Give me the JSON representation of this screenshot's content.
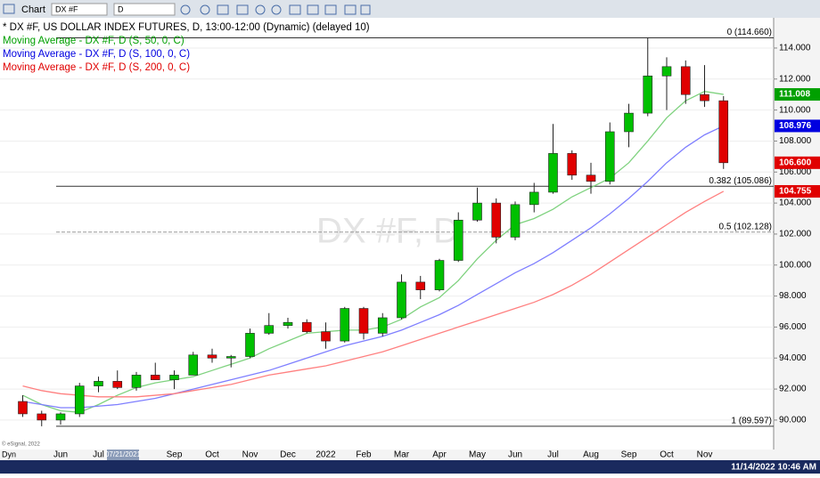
{
  "toolbar": {
    "title": "Chart",
    "symbol": "DX #F",
    "interval": "D"
  },
  "chart_data": {
    "type": "candlestick",
    "title": "* DX #F, US DOLLAR INDEX FUTURES, D, 13:00-12:00 (Dynamic) (delayed 10)",
    "watermark": "DX #F, D",
    "crosshair_date": "07/21/2021",
    "footer_time": "11/14/2022 10:46 AM",
    "mode": "Dyn",
    "copyright": "© eSignal, 2022",
    "categories": [
      null,
      null,
      "Jun",
      null,
      "Jul",
      null,
      null,
      null,
      "Sep",
      null,
      "Oct",
      null,
      "Nov",
      null,
      "Dec",
      null,
      "2022",
      null,
      "Feb",
      null,
      "Mar",
      null,
      "Apr",
      null,
      "May",
      null,
      "Jun",
      null,
      "Jul",
      null,
      "Aug",
      null,
      "Sep",
      null,
      "Oct",
      null,
      "Nov",
      null
    ],
    "open": [
      91.2,
      90.4,
      90.0,
      90.4,
      92.2,
      92.5,
      92.1,
      92.9,
      92.6,
      92.9,
      94.2,
      94.0,
      94.1,
      95.6,
      96.1,
      96.3,
      95.7,
      95.1,
      97.2,
      95.6,
      96.6,
      98.9,
      98.4,
      100.3,
      102.9,
      104.0,
      101.8,
      103.9,
      104.7,
      107.2,
      105.8,
      105.4,
      108.6,
      109.8,
      112.2,
      112.8,
      111.0,
      110.6
    ],
    "high": [
      91.6,
      90.6,
      90.5,
      92.4,
      92.8,
      93.2,
      93.1,
      93.7,
      93.2,
      94.4,
      94.6,
      94.2,
      95.9,
      96.9,
      96.6,
      96.5,
      96.3,
      97.3,
      97.3,
      96.9,
      99.4,
      99.3,
      100.4,
      103.4,
      105.0,
      104.3,
      104.1,
      105.3,
      109.1,
      107.4,
      106.6,
      109.2,
      110.4,
      114.66,
      113.4,
      113.2,
      112.9,
      110.9
    ],
    "low": [
      90.2,
      89.6,
      89.7,
      90.2,
      91.8,
      92.0,
      91.9,
      92.6,
      92.0,
      92.9,
      93.7,
      93.4,
      94.0,
      95.5,
      95.9,
      95.6,
      94.6,
      95.0,
      95.2,
      95.4,
      96.5,
      97.8,
      98.3,
      100.2,
      102.8,
      101.4,
      101.6,
      103.4,
      104.6,
      105.5,
      104.6,
      105.2,
      107.6,
      109.6,
      110.0,
      110.4,
      110.2,
      106.2
    ],
    "close": [
      90.4,
      90.0,
      90.4,
      92.2,
      92.5,
      92.1,
      92.9,
      92.6,
      92.9,
      94.2,
      94.0,
      94.1,
      95.6,
      96.1,
      96.3,
      95.7,
      95.1,
      97.2,
      95.6,
      96.6,
      98.9,
      98.4,
      100.3,
      102.9,
      104.0,
      101.8,
      103.9,
      104.7,
      107.2,
      105.8,
      105.4,
      108.6,
      109.8,
      112.2,
      112.8,
      111.0,
      110.6,
      106.6
    ],
    "up_color": "#00c000",
    "down_color": "#e00000",
    "series": [
      {
        "name": "Moving Average - DX #F, D (S, 50, 0, C)",
        "color": "#7fd27f",
        "legend_color": "#00a000",
        "values": [
          91.6,
          91.0,
          90.6,
          90.5,
          91.0,
          91.6,
          92.1,
          92.4,
          92.6,
          92.8,
          93.2,
          93.6,
          94.0,
          94.6,
          95.1,
          95.6,
          95.7,
          95.8,
          95.8,
          96.0,
          96.5,
          97.3,
          97.9,
          99.0,
          100.4,
          101.6,
          102.6,
          103.0,
          103.6,
          104.4,
          105.0,
          105.6,
          106.6,
          108.0,
          109.5,
          110.6,
          111.2,
          111.008
        ]
      },
      {
        "name": "Moving Average - DX #F, D (S, 100, 0, C)",
        "color": "#7f7fff",
        "legend_color": "#0000e0",
        "values": [
          91.2,
          91.0,
          90.8,
          90.8,
          90.9,
          91.0,
          91.2,
          91.4,
          91.7,
          92.0,
          92.3,
          92.6,
          92.9,
          93.2,
          93.6,
          94.0,
          94.4,
          94.8,
          95.1,
          95.4,
          95.8,
          96.3,
          96.8,
          97.4,
          98.1,
          98.8,
          99.5,
          100.1,
          100.8,
          101.6,
          102.4,
          103.3,
          104.3,
          105.4,
          106.6,
          107.6,
          108.4,
          108.976
        ]
      },
      {
        "name": "Moving Average - DX #F, D (S, 200, 0, C)",
        "color": "#ff8080",
        "legend_color": "#e00000",
        "values": [
          92.2,
          91.9,
          91.7,
          91.6,
          91.5,
          91.5,
          91.5,
          91.6,
          91.7,
          91.9,
          92.1,
          92.3,
          92.6,
          92.9,
          93.1,
          93.3,
          93.5,
          93.8,
          94.1,
          94.4,
          94.8,
          95.2,
          95.6,
          96.0,
          96.4,
          96.8,
          97.2,
          97.6,
          98.1,
          98.7,
          99.4,
          100.2,
          101.0,
          101.8,
          102.6,
          103.4,
          104.1,
          104.755
        ]
      }
    ],
    "fib_levels": [
      {
        "value": 114.66,
        "label": "0 (114.660)",
        "dashed": false
      },
      {
        "value": 105.086,
        "label": "0.382 (105.086)",
        "dashed": false
      },
      {
        "value": 102.128,
        "label": "0.5 (102.128)",
        "dashed": true
      },
      {
        "value": 89.597,
        "label": "1 (89.597)",
        "dashed": false
      }
    ],
    "price_tags": [
      {
        "value": 111.008,
        "label": "111.008",
        "color": "#00a000"
      },
      {
        "value": 108.976,
        "label": "108.976",
        "color": "#0000e0"
      },
      {
        "value": 106.6,
        "label": "106.600",
        "color": "#e00000"
      },
      {
        "value": 104.755,
        "label": "104.755",
        "color": "#e00000"
      }
    ],
    "ylim": [
      88.1,
      115.95
    ],
    "yticks": [
      {
        "value": 90,
        "label": "90.000"
      },
      {
        "value": 92,
        "label": "92.000"
      },
      {
        "value": 94,
        "label": "94.000"
      },
      {
        "value": 96,
        "label": "96.000"
      },
      {
        "value": 98,
        "label": "98.000"
      },
      {
        "value": 100,
        "label": "100.000"
      },
      {
        "value": 102,
        "label": "102.000"
      },
      {
        "value": 104,
        "label": "104.000"
      },
      {
        "value": 106,
        "label": "106.000"
      },
      {
        "value": 108,
        "label": "108.000"
      },
      {
        "value": 110,
        "label": "110.000"
      },
      {
        "value": 112,
        "label": "112.000"
      },
      {
        "value": 114,
        "label": "114.000"
      }
    ],
    "grid": true
  }
}
